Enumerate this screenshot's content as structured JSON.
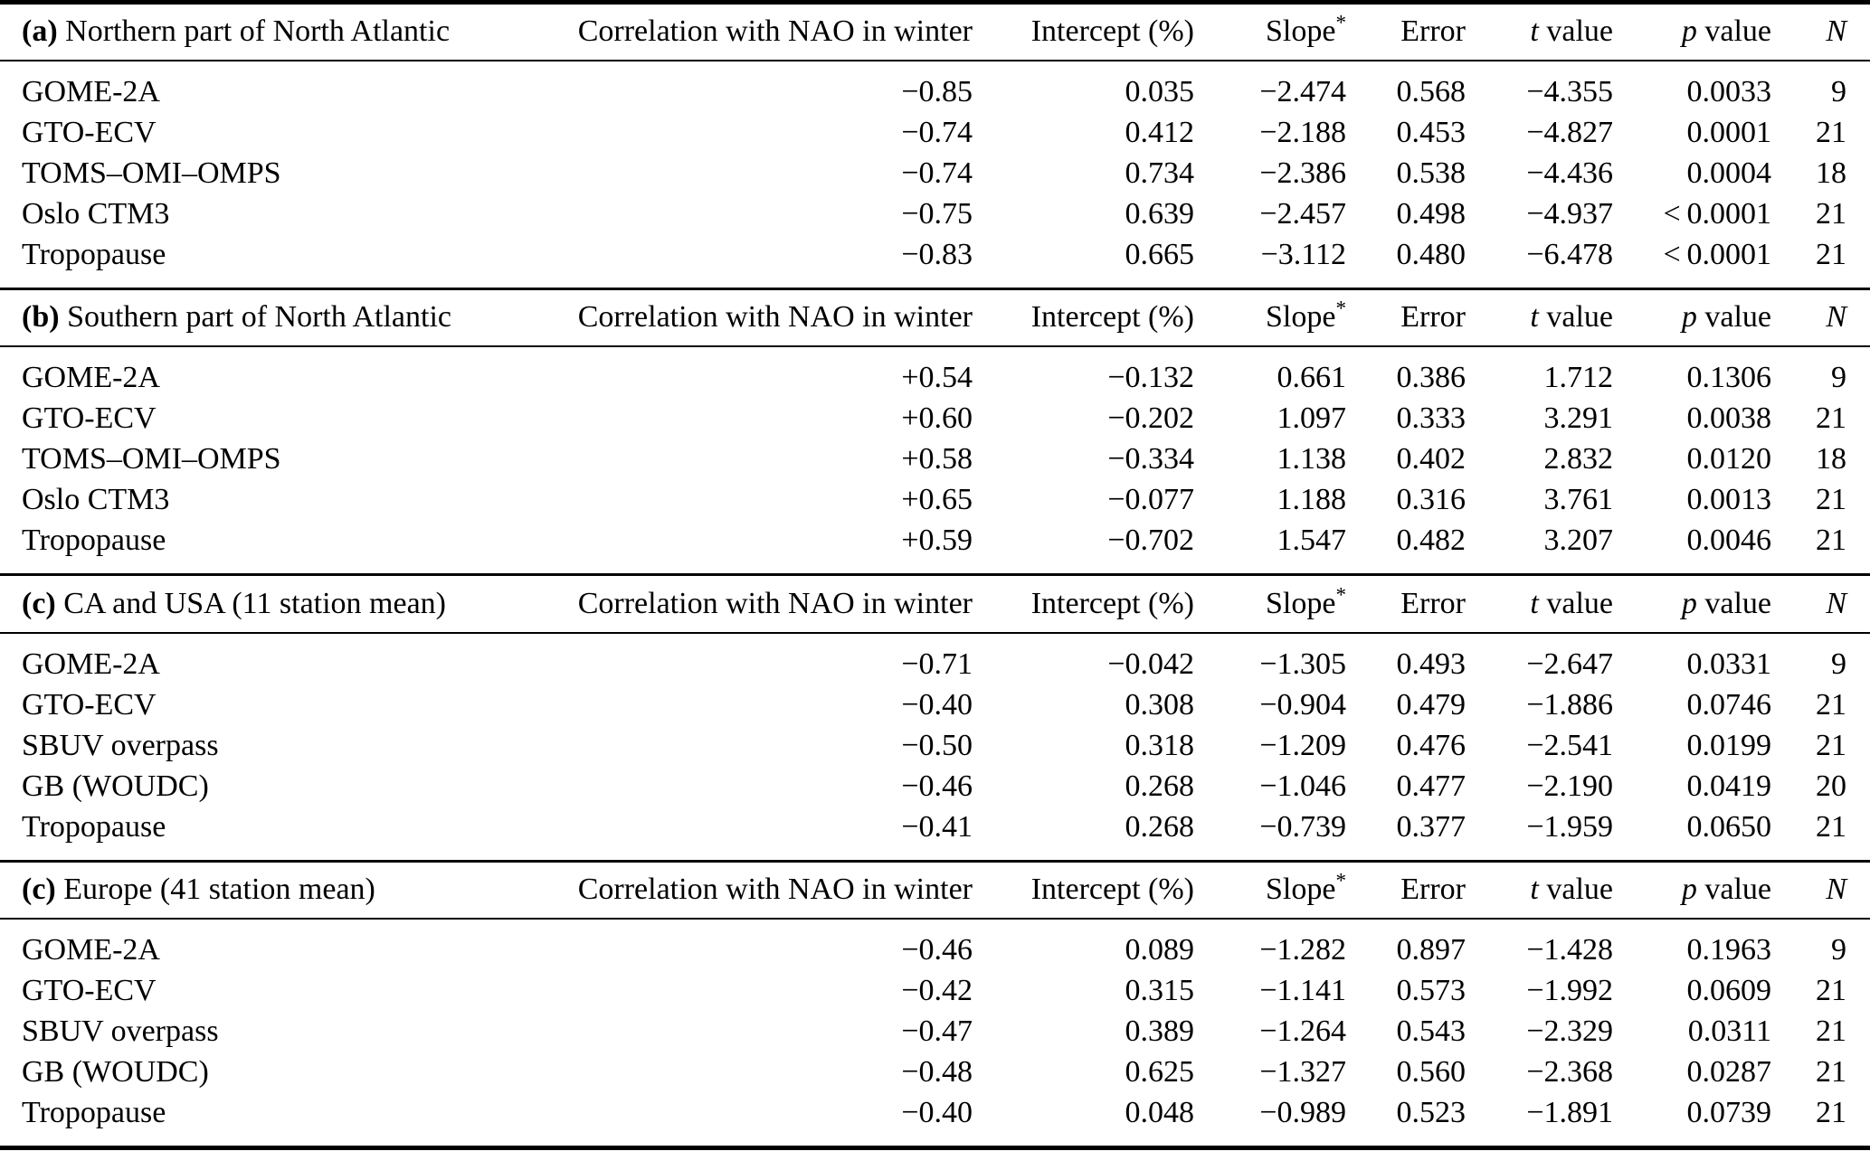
{
  "page": {
    "background": "#ffffff",
    "text_color": "#000000",
    "rule_color": "#000000"
  },
  "table": {
    "columns": {
      "corr": "Correlation with NAO in winter",
      "intercept": "Intercept (%)",
      "slope_main": "Slope",
      "slope_sup": "*",
      "error": "Error",
      "t_italic": "t",
      "t_rest": " value",
      "p_italic": "p",
      "p_rest": " value",
      "n_italic": "N"
    },
    "sections": [
      {
        "tag": "(a)",
        "title": " Northern part of North Atlantic",
        "rows": [
          {
            "label": "GOME-2A",
            "corr": "−0.85",
            "intercept": "0.035",
            "slope": "−2.474",
            "error": "0.568",
            "t": "−4.355",
            "p": "0.0033",
            "n": "9"
          },
          {
            "label": "GTO-ECV",
            "corr": "−0.74",
            "intercept": "0.412",
            "slope": "−2.188",
            "error": "0.453",
            "t": "−4.827",
            "p": "0.0001",
            "n": "21"
          },
          {
            "label": "TOMS–OMI–OMPS",
            "corr": "−0.74",
            "intercept": "0.734",
            "slope": "−2.386",
            "error": "0.538",
            "t": "−4.436",
            "p": "0.0004",
            "n": "18"
          },
          {
            "label": "Oslo CTM3",
            "corr": "−0.75",
            "intercept": "0.639",
            "slope": "−2.457",
            "error": "0.498",
            "t": "−4.937",
            "p": "< 0.0001",
            "n": "21"
          },
          {
            "label": "Tropopause",
            "corr": "−0.83",
            "intercept": "0.665",
            "slope": "−3.112",
            "error": "0.480",
            "t": "−6.478",
            "p": "< 0.0001",
            "n": "21"
          }
        ]
      },
      {
        "tag": "(b)",
        "title": " Southern part of North Atlantic",
        "rows": [
          {
            "label": "GOME-2A",
            "corr": "+0.54",
            "intercept": "−0.132",
            "slope": "0.661",
            "error": "0.386",
            "t": "1.712",
            "p": "0.1306",
            "n": "9"
          },
          {
            "label": "GTO-ECV",
            "corr": "+0.60",
            "intercept": "−0.202",
            "slope": "1.097",
            "error": "0.333",
            "t": "3.291",
            "p": "0.0038",
            "n": "21"
          },
          {
            "label": "TOMS–OMI–OMPS",
            "corr": "+0.58",
            "intercept": "−0.334",
            "slope": "1.138",
            "error": "0.402",
            "t": "2.832",
            "p": "0.0120",
            "n": "18"
          },
          {
            "label": "Oslo CTM3",
            "corr": "+0.65",
            "intercept": "−0.077",
            "slope": "1.188",
            "error": "0.316",
            "t": "3.761",
            "p": "0.0013",
            "n": "21"
          },
          {
            "label": "Tropopause",
            "corr": "+0.59",
            "intercept": "−0.702",
            "slope": "1.547",
            "error": "0.482",
            "t": "3.207",
            "p": "0.0046",
            "n": "21"
          }
        ]
      },
      {
        "tag": "(c)",
        "title": " CA and USA (11 station mean)",
        "rows": [
          {
            "label": "GOME-2A",
            "corr": "−0.71",
            "intercept": "−0.042",
            "slope": "−1.305",
            "error": "0.493",
            "t": "−2.647",
            "p": "0.0331",
            "n": "9"
          },
          {
            "label": "GTO-ECV",
            "corr": "−0.40",
            "intercept": "0.308",
            "slope": "−0.904",
            "error": "0.479",
            "t": "−1.886",
            "p": "0.0746",
            "n": "21"
          },
          {
            "label": "SBUV overpass",
            "corr": "−0.50",
            "intercept": "0.318",
            "slope": "−1.209",
            "error": "0.476",
            "t": "−2.541",
            "p": "0.0199",
            "n": "21"
          },
          {
            "label": "GB (WOUDC)",
            "corr": "−0.46",
            "intercept": "0.268",
            "slope": "−1.046",
            "error": "0.477",
            "t": "−2.190",
            "p": "0.0419",
            "n": "20"
          },
          {
            "label": "Tropopause",
            "corr": "−0.41",
            "intercept": "0.268",
            "slope": "−0.739",
            "error": "0.377",
            "t": "−1.959",
            "p": "0.0650",
            "n": "21"
          }
        ]
      },
      {
        "tag": "(c)",
        "title": " Europe (41 station mean)",
        "rows": [
          {
            "label": "GOME-2A",
            "corr": "−0.46",
            "intercept": "0.089",
            "slope": "−1.282",
            "error": "0.897",
            "t": "−1.428",
            "p": "0.1963",
            "n": "9"
          },
          {
            "label": "GTO-ECV",
            "corr": "−0.42",
            "intercept": "0.315",
            "slope": "−1.141",
            "error": "0.573",
            "t": "−1.992",
            "p": "0.0609",
            "n": "21"
          },
          {
            "label": "SBUV overpass",
            "corr": "−0.47",
            "intercept": "0.389",
            "slope": "−1.264",
            "error": "0.543",
            "t": "−2.329",
            "p": "0.0311",
            "n": "21"
          },
          {
            "label": "GB (WOUDC)",
            "corr": "−0.48",
            "intercept": "0.625",
            "slope": "−1.327",
            "error": "0.560",
            "t": "−2.368",
            "p": "0.0287",
            "n": "21"
          },
          {
            "label": "Tropopause",
            "corr": "−0.40",
            "intercept": "0.048",
            "slope": "−0.989",
            "error": "0.523",
            "t": "−1.891",
            "p": "0.0739",
            "n": "21"
          }
        ]
      }
    ]
  }
}
